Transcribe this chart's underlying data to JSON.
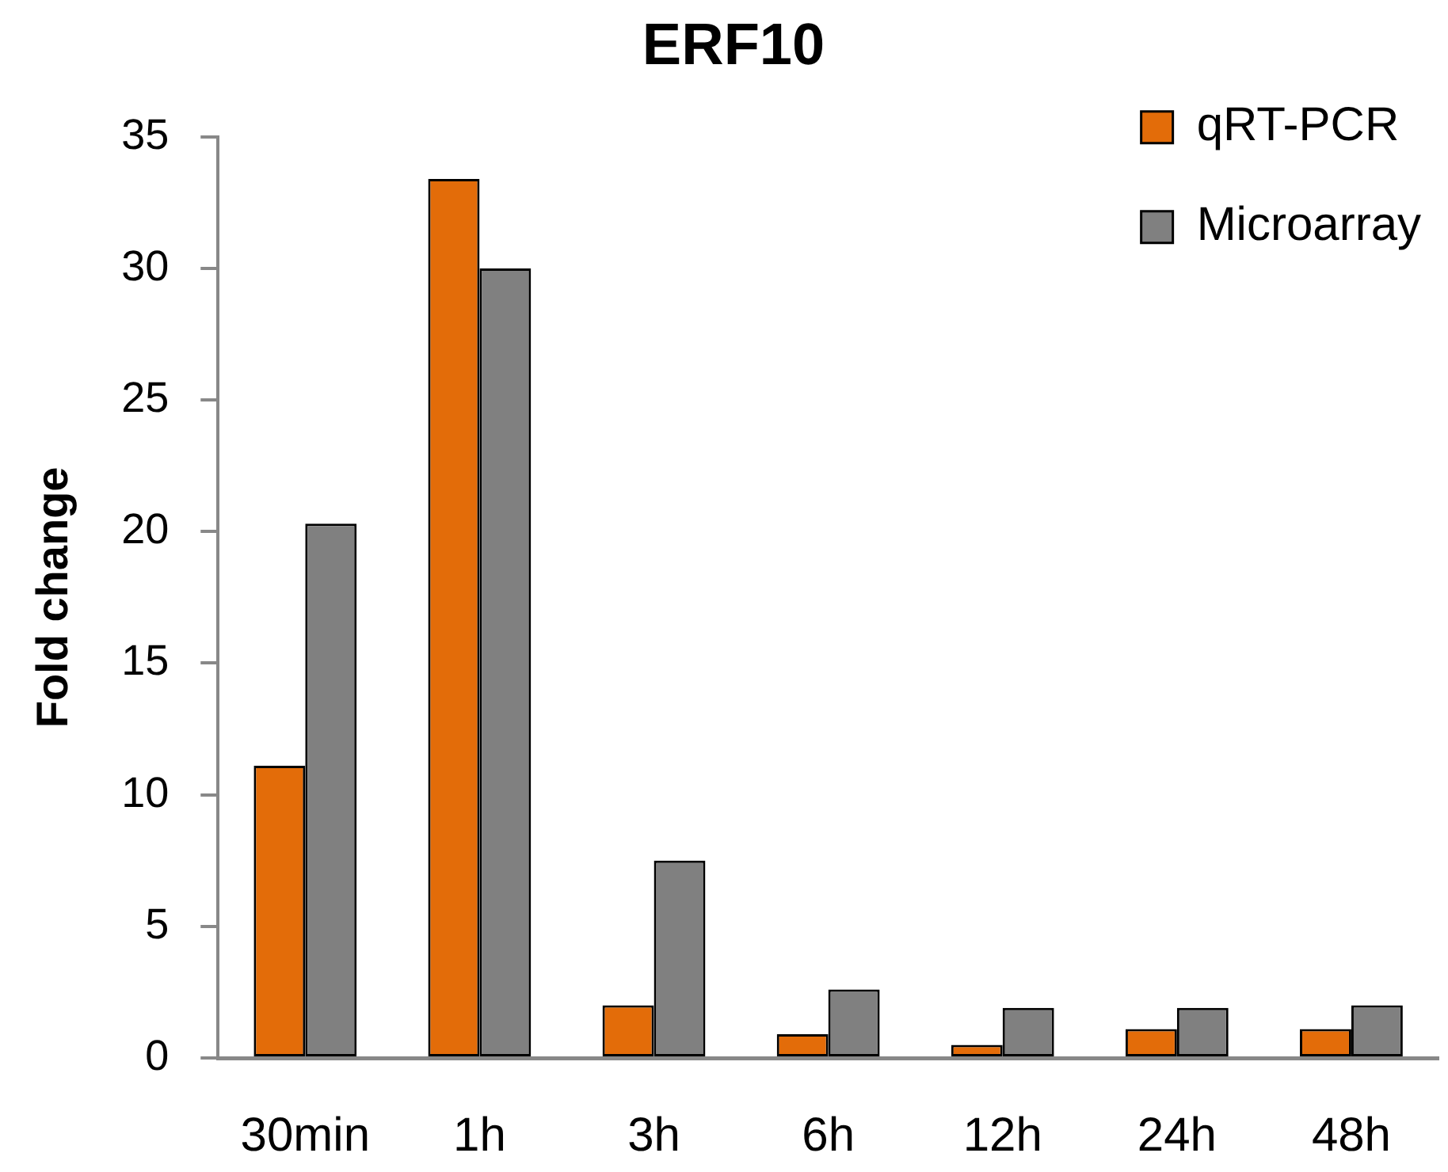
{
  "chart_data": {
    "type": "bar",
    "title": "ERF10",
    "ylabel": "Fold change",
    "categories": [
      "30min",
      "1h",
      "3h",
      "6h",
      "12h",
      "24h",
      "48h"
    ],
    "series": [
      {
        "name": "qRT-PCR",
        "color": "#e36c09",
        "values": [
          11.1,
          33.4,
          2.0,
          0.9,
          0.5,
          1.1,
          1.1
        ]
      },
      {
        "name": "Microarray",
        "color": "#808080",
        "values": [
          20.3,
          30.0,
          7.5,
          2.6,
          1.9,
          1.9,
          2.0
        ]
      }
    ],
    "ylim": [
      0,
      35
    ],
    "yticks": [
      0,
      5,
      10,
      15,
      20,
      25,
      30,
      35
    ],
    "grid": false,
    "legend": "top right"
  }
}
